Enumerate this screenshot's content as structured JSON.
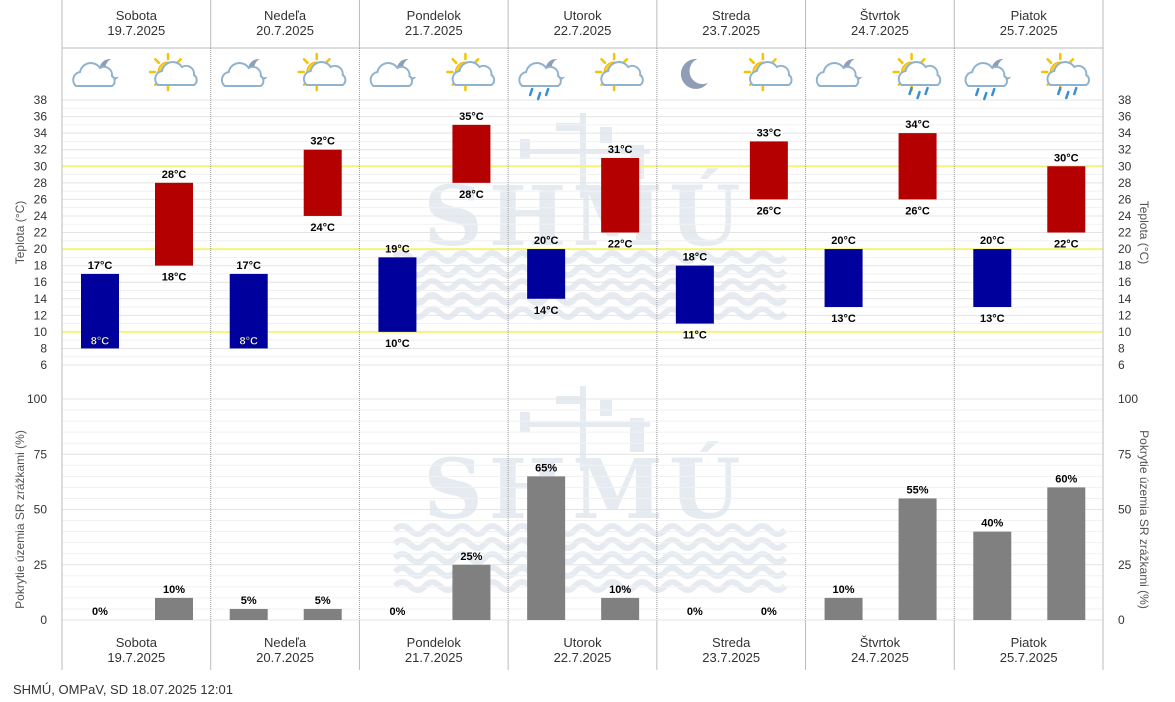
{
  "days": [
    {
      "name": "Sobota",
      "date": "19.7.2025",
      "icons": [
        "cloud-moon-icon",
        "sun-cloud-icon"
      ]
    },
    {
      "name": "Nedeľa",
      "date": "20.7.2025",
      "icons": [
        "cloud-moon-icon",
        "sun-cloud-icon"
      ]
    },
    {
      "name": "Pondelok",
      "date": "21.7.2025",
      "icons": [
        "cloud-moon-icon",
        "sun-cloud-icon"
      ]
    },
    {
      "name": "Utorok",
      "date": "22.7.2025",
      "icons": [
        "rain-cloud-moon-icon",
        "sun-cloud-icon"
      ]
    },
    {
      "name": "Streda",
      "date": "23.7.2025",
      "icons": [
        "moon-icon",
        "sun-cloud-icon"
      ]
    },
    {
      "name": "Štvrtok",
      "date": "24.7.2025",
      "icons": [
        "cloud-moon-icon",
        "sun-rain-cloud-icon"
      ]
    },
    {
      "name": "Piatok",
      "date": "25.7.2025",
      "icons": [
        "rain-cloud-moon-icon",
        "sun-rain-cloud-icon"
      ]
    }
  ],
  "chart_data": [
    {
      "type": "bar",
      "subtype": "floating-range",
      "ylabel": "Teplota (°C)",
      "ylim": [
        6,
        38
      ],
      "yticks": [
        6,
        8,
        10,
        12,
        14,
        16,
        18,
        20,
        22,
        24,
        26,
        28,
        30,
        32,
        34,
        36,
        38
      ],
      "highlight_lines": [
        10,
        20,
        30
      ],
      "unit": "°C",
      "series": [
        {
          "name": "noc",
          "color": "#00009c",
          "min": [
            8,
            8,
            10,
            14,
            11,
            13,
            13
          ],
          "max": [
            17,
            17,
            19,
            20,
            18,
            20,
            20
          ]
        },
        {
          "name": "deň",
          "color": "#b50000",
          "min": [
            18,
            24,
            28,
            22,
            26,
            26,
            22
          ],
          "max": [
            28,
            32,
            35,
            31,
            33,
            34,
            30
          ]
        }
      ]
    },
    {
      "type": "bar",
      "ylabel": "Pokrytie územia SR zrážkami (%)",
      "ylim": [
        0,
        100
      ],
      "yticks": [
        0,
        25,
        50,
        75,
        100
      ],
      "unit": "%",
      "color": "#808080",
      "series": [
        {
          "name": "noc",
          "values": [
            0,
            5,
            0,
            65,
            0,
            10,
            40
          ]
        },
        {
          "name": "deň",
          "values": [
            10,
            5,
            25,
            10,
            0,
            55,
            60
          ]
        }
      ]
    }
  ],
  "watermark": "SHMÚ",
  "footer": "SHMÚ, OMPaV, SD 18.07.2025 12:01"
}
